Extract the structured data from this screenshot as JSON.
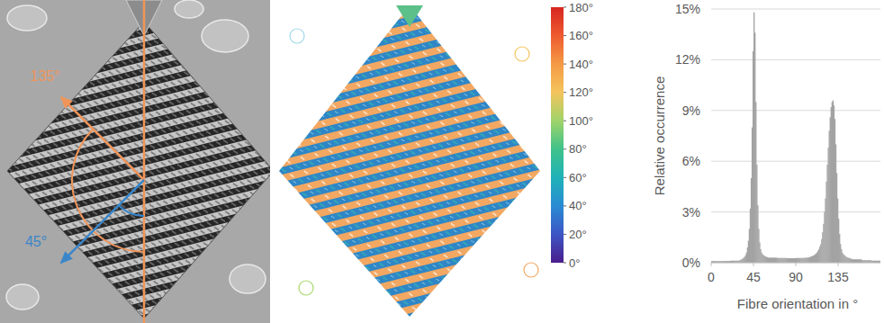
{
  "photo_panel": {
    "annotations": [
      {
        "value": 135,
        "label": "135°"
      },
      {
        "value": 45,
        "label": "45°"
      }
    ]
  },
  "orientation_map": {
    "colorbar": {
      "range": [
        0,
        180
      ],
      "ticks": [
        {
          "value": 0,
          "label": "0°"
        },
        {
          "value": 20,
          "label": "20°"
        },
        {
          "value": 40,
          "label": "40°"
        },
        {
          "value": 60,
          "label": "60°"
        },
        {
          "value": 80,
          "label": "80°"
        },
        {
          "value": 100,
          "label": "100°"
        },
        {
          "value": 120,
          "label": "120°"
        },
        {
          "value": 140,
          "label": "140°"
        },
        {
          "value": 160,
          "label": "160°"
        },
        {
          "value": 180,
          "label": "180°"
        }
      ]
    }
  },
  "chart_data": {
    "type": "histogram",
    "x_label": "Fibre orientation in °",
    "y_label": "Relative occurrence",
    "color": "#a3a3a3",
    "bins": [
      0,
      1,
      2,
      3,
      4,
      5,
      6,
      7,
      8,
      9,
      10,
      11,
      12,
      13,
      14,
      15,
      16,
      17,
      18,
      19,
      20,
      21,
      22,
      23,
      24,
      25,
      26,
      27,
      28,
      29,
      30,
      31,
      32,
      33,
      34,
      35,
      36,
      37,
      38,
      39,
      40,
      41,
      42,
      43,
      44,
      45,
      46,
      47,
      48,
      49,
      50,
      51,
      52,
      53,
      54,
      55,
      56,
      57,
      58,
      59,
      60,
      61,
      62,
      63,
      64,
      65,
      66,
      67,
      68,
      69,
      70,
      71,
      72,
      73,
      74,
      75,
      76,
      77,
      78,
      79,
      80,
      81,
      82,
      83,
      84,
      85,
      86,
      87,
      88,
      89,
      90,
      91,
      92,
      93,
      94,
      95,
      96,
      97,
      98,
      99,
      100,
      101,
      102,
      103,
      104,
      105,
      106,
      107,
      108,
      109,
      110,
      111,
      112,
      113,
      114,
      115,
      116,
      117,
      118,
      119,
      120,
      121,
      122,
      123,
      124,
      125,
      126,
      127,
      128,
      129,
      130,
      131,
      132,
      133,
      134,
      135,
      136,
      137,
      138,
      139,
      140,
      141,
      142,
      143,
      144,
      145,
      146,
      147,
      148,
      149,
      150,
      151,
      152,
      153,
      154,
      155,
      156,
      157,
      158,
      159,
      160,
      161,
      162,
      163,
      164,
      165,
      166,
      167,
      168,
      169,
      170,
      171,
      172,
      173,
      174,
      175,
      176,
      177,
      178,
      179,
      180
    ],
    "values": [
      0.1,
      0.1,
      0.1,
      0.1,
      0.1,
      0.1,
      0.1,
      0.1,
      0.1,
      0.1,
      0.1,
      0.1,
      0.1,
      0.1,
      0.1,
      0.1,
      0.1,
      0.1,
      0.1,
      0.1,
      0.12,
      0.12,
      0.12,
      0.12,
      0.12,
      0.12,
      0.12,
      0.12,
      0.12,
      0.12,
      0.15,
      0.18,
      0.2,
      0.25,
      0.3,
      0.35,
      0.45,
      0.6,
      0.9,
      1.3,
      2.0,
      3.2,
      5.0,
      8.0,
      12.5,
      14.8,
      13.6,
      9.5,
      5.8,
      3.4,
      2.0,
      1.2,
      0.8,
      0.6,
      0.5,
      0.45,
      0.4,
      0.38,
      0.35,
      0.33,
      0.3,
      0.3,
      0.3,
      0.3,
      0.3,
      0.3,
      0.3,
      0.3,
      0.3,
      0.3,
      0.28,
      0.28,
      0.28,
      0.28,
      0.28,
      0.28,
      0.28,
      0.28,
      0.28,
      0.28,
      0.27,
      0.27,
      0.27,
      0.27,
      0.27,
      0.27,
      0.27,
      0.27,
      0.27,
      0.27,
      0.28,
      0.28,
      0.28,
      0.28,
      0.28,
      0.28,
      0.28,
      0.28,
      0.28,
      0.28,
      0.3,
      0.3,
      0.3,
      0.32,
      0.33,
      0.35,
      0.37,
      0.4,
      0.42,
      0.45,
      0.5,
      0.55,
      0.6,
      0.7,
      0.8,
      0.95,
      1.1,
      1.4,
      1.8,
      2.3,
      3.0,
      3.8,
      4.8,
      5.8,
      6.8,
      7.8,
      8.6,
      9.2,
      9.5,
      9.6,
      9.3,
      8.5,
      7.0,
      5.3,
      3.8,
      2.6,
      1.7,
      1.1,
      0.8,
      0.6,
      0.5,
      0.45,
      0.4,
      0.35,
      0.32,
      0.3,
      0.28,
      0.26,
      0.24,
      0.22,
      0.2,
      0.2,
      0.2,
      0.2,
      0.2,
      0.2,
      0.2,
      0.2,
      0.2,
      0.2,
      0.15,
      0.15,
      0.15,
      0.15,
      0.15,
      0.15,
      0.15,
      0.15,
      0.15,
      0.15,
      0.12,
      0.12,
      0.12,
      0.12,
      0.12,
      0.12,
      0.12,
      0.12,
      0.12,
      0.12
    ],
    "xlim": [
      0,
      180
    ],
    "xticks": [
      0,
      45,
      90,
      135
    ],
    "ylim": [
      0,
      15
    ],
    "yticks": [
      {
        "value": 0,
        "label": "0%"
      },
      {
        "value": 3,
        "label": "3%"
      },
      {
        "value": 6,
        "label": "6%"
      },
      {
        "value": 9,
        "label": "9%"
      },
      {
        "value": 12,
        "label": "12%"
      },
      {
        "value": 15,
        "label": "15%"
      }
    ],
    "grid": true
  }
}
